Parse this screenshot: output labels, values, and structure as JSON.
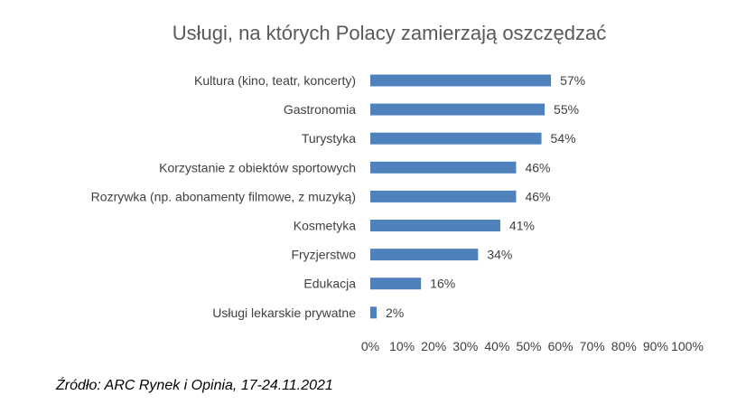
{
  "chart_data": {
    "type": "bar",
    "orientation": "horizontal",
    "title": "Usługi, na których Polacy zamierzają oszczędzać",
    "categories": [
      "Kultura (kino, teatr, koncerty)",
      "Gastronomia",
      "Turystyka",
      "Korzystanie z obiektów sportowych",
      "Rozrywka (np. abonamenty filmowe, z muzyką)",
      "Kosmetyka",
      "Fryzjerstwo",
      "Edukacja",
      "Usługi lekarskie prywatne"
    ],
    "values": [
      57,
      55,
      54,
      46,
      46,
      41,
      34,
      16,
      2
    ],
    "value_labels": [
      "57%",
      "55%",
      "54%",
      "46%",
      "46%",
      "41%",
      "34%",
      "16%",
      "2%"
    ],
    "xlim": [
      0,
      100
    ],
    "xticks": [
      "0%",
      "10%",
      "20%",
      "30%",
      "40%",
      "50%",
      "60%",
      "70%",
      "80%",
      "90%",
      "100%"
    ],
    "grid": false,
    "legend": "none",
    "bar_color": "#4f81bd"
  },
  "source": "Źródło: ARC Rynek i Opinia, 17-24.11.2021"
}
